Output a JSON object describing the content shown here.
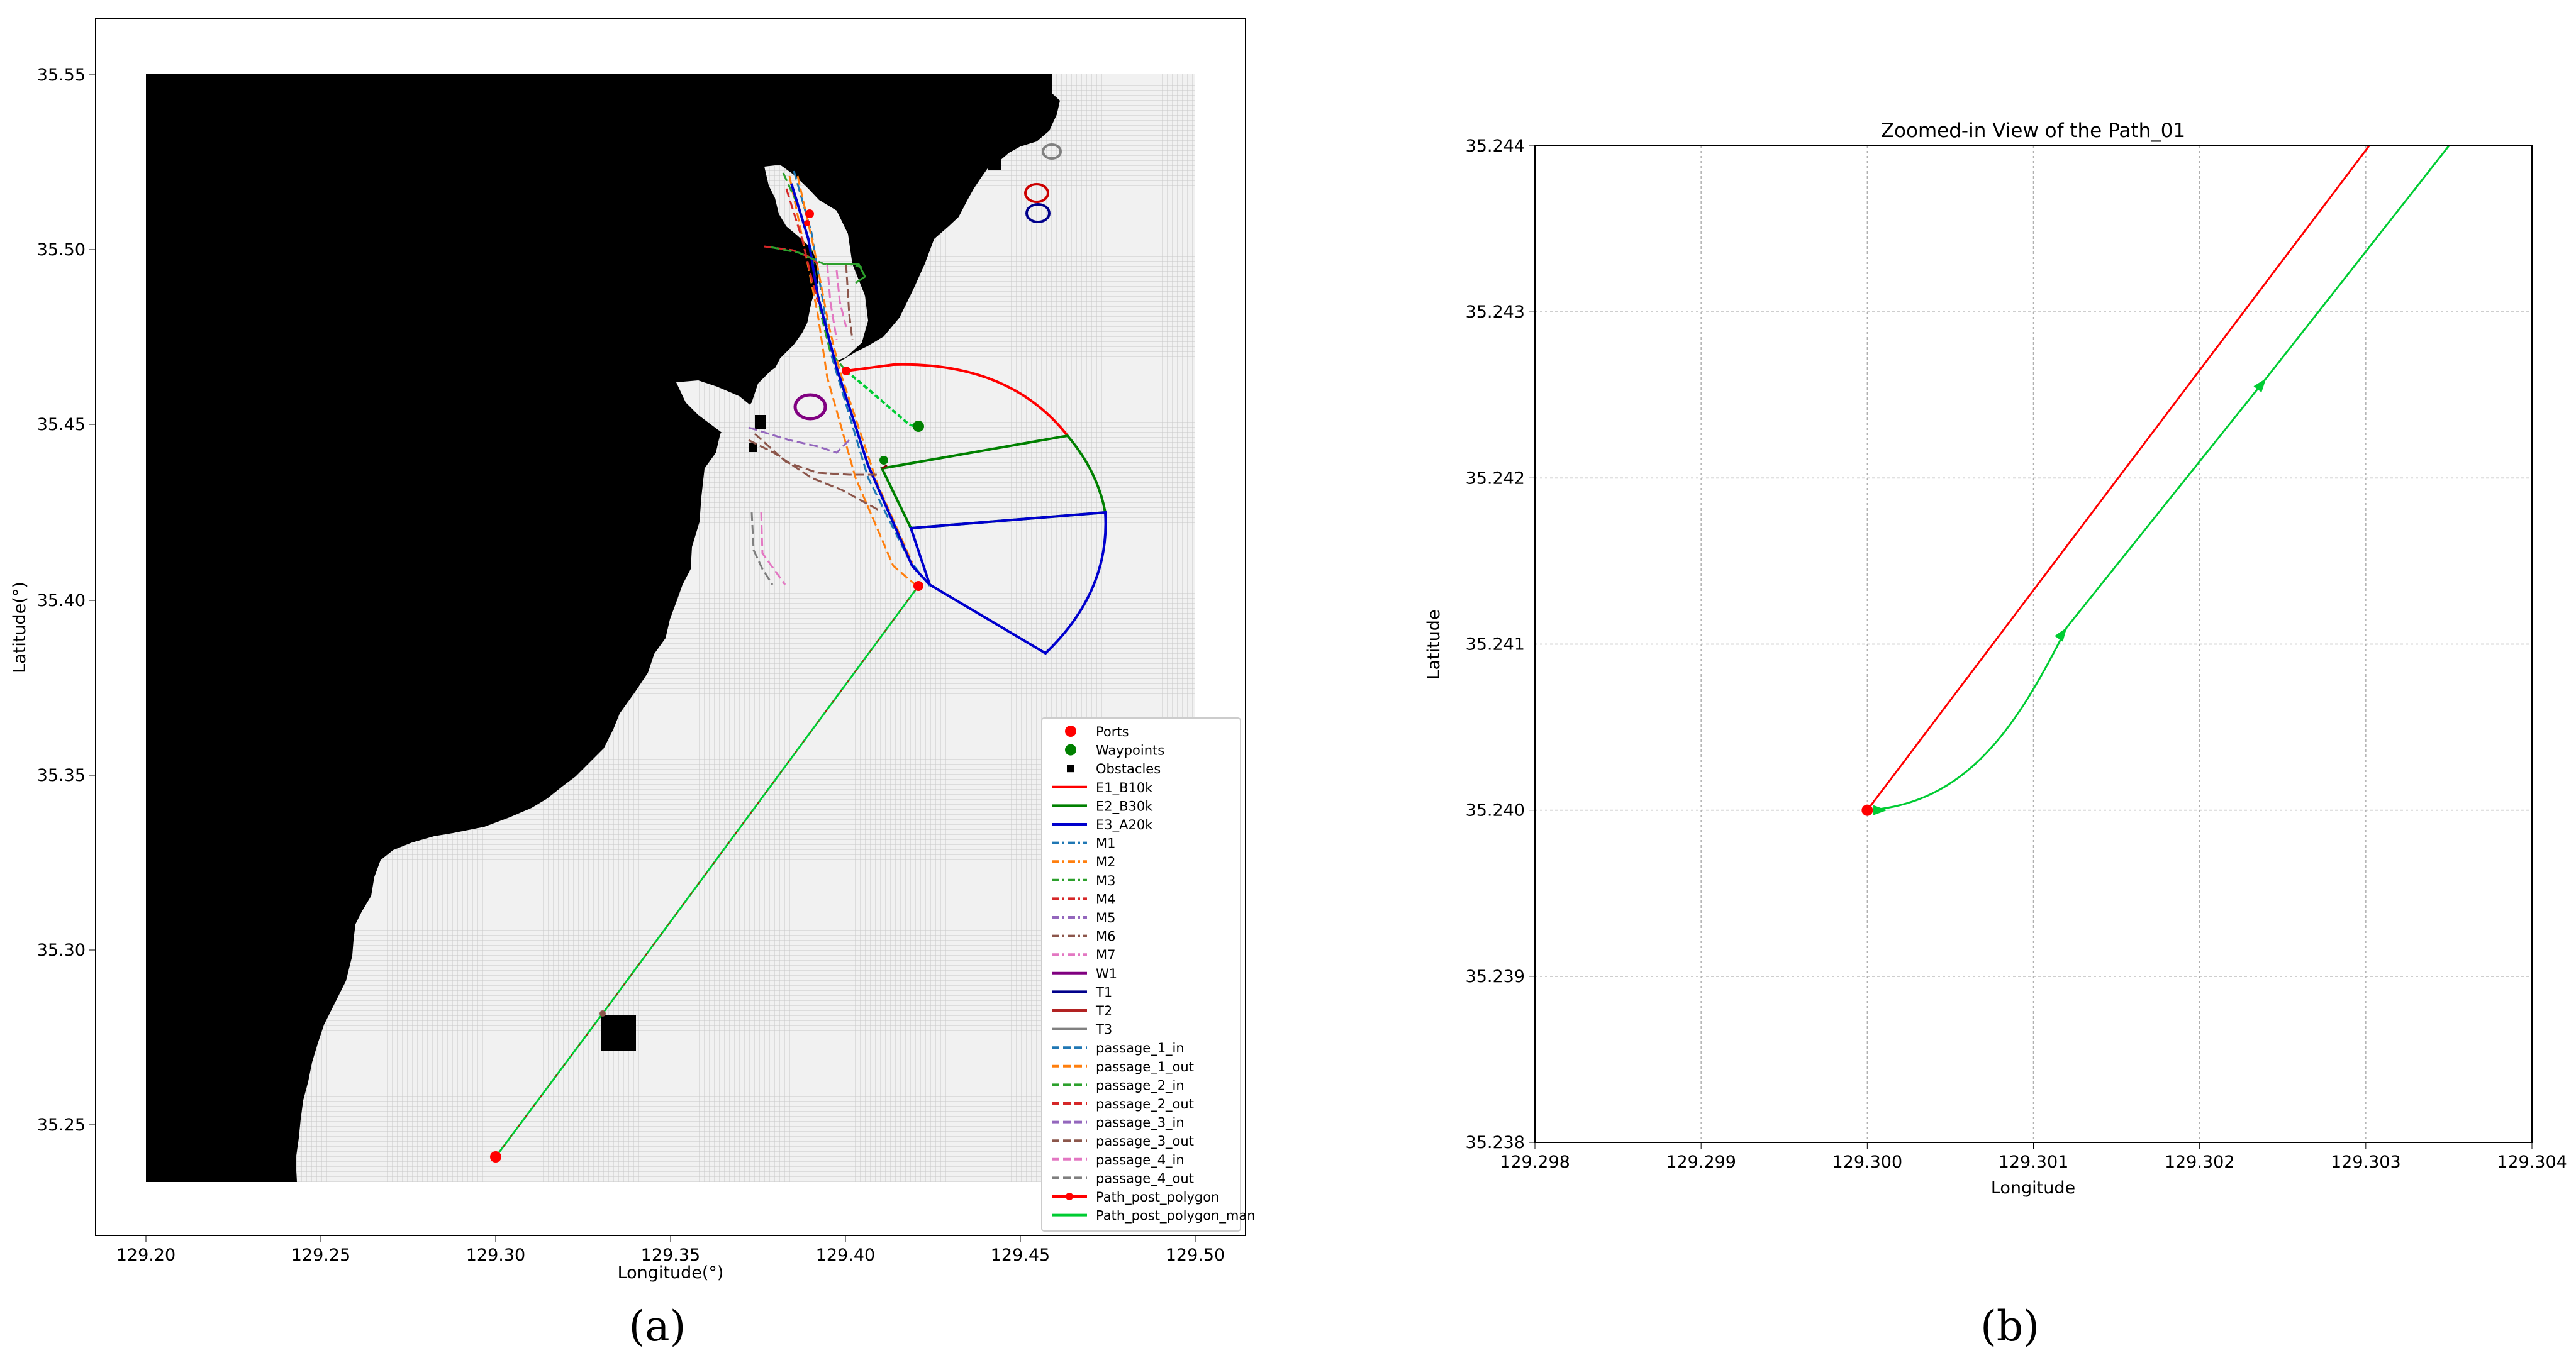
{
  "panel_a": {
    "caption": "(a)",
    "xlabel": "Longitude(°)",
    "ylabel": "Latitude(°)",
    "xticks": [
      "129.20",
      "129.25",
      "129.30",
      "129.35",
      "129.40",
      "129.45",
      "129.50"
    ],
    "yticks": [
      "35.25",
      "35.30",
      "35.35",
      "35.40",
      "35.45",
      "35.50",
      "35.55"
    ],
    "legend": [
      {
        "label": "Ports",
        "color": "#ff0000",
        "kind": "dot"
      },
      {
        "label": "Waypoints",
        "color": "#008000",
        "kind": "dot"
      },
      {
        "label": "Obstacles",
        "color": "#000000",
        "kind": "square"
      },
      {
        "label": "E1_B10k",
        "color": "#ff0000",
        "kind": "line"
      },
      {
        "label": "E2_B30k",
        "color": "#008000",
        "kind": "line"
      },
      {
        "label": "E3_A20k",
        "color": "#0000cd",
        "kind": "line"
      },
      {
        "label": "M1",
        "color": "#1f77b4",
        "kind": "dashdot"
      },
      {
        "label": "M2",
        "color": "#ff7f0e",
        "kind": "dashdot"
      },
      {
        "label": "M3",
        "color": "#2ca02c",
        "kind": "dashdot"
      },
      {
        "label": "M4",
        "color": "#d62728",
        "kind": "dashdot"
      },
      {
        "label": "M5",
        "color": "#9467bd",
        "kind": "dashdot"
      },
      {
        "label": "M6",
        "color": "#8c564b",
        "kind": "dashdot"
      },
      {
        "label": "M7",
        "color": "#e377c2",
        "kind": "dashdot"
      },
      {
        "label": "W1",
        "color": "#800080",
        "kind": "line"
      },
      {
        "label": "T1",
        "color": "#00008b",
        "kind": "line"
      },
      {
        "label": "T2",
        "color": "#b22222",
        "kind": "line"
      },
      {
        "label": "T3",
        "color": "#808080",
        "kind": "line"
      },
      {
        "label": "passage_1_in",
        "color": "#1f77b4",
        "kind": "dashed"
      },
      {
        "label": "passage_1_out",
        "color": "#ff7f0e",
        "kind": "dashed"
      },
      {
        "label": "passage_2_in",
        "color": "#2ca02c",
        "kind": "dashed"
      },
      {
        "label": "passage_2_out",
        "color": "#d62728",
        "kind": "dashed"
      },
      {
        "label": "passage_3_in",
        "color": "#9467bd",
        "kind": "dashed"
      },
      {
        "label": "passage_3_out",
        "color": "#8c564b",
        "kind": "dashed"
      },
      {
        "label": "passage_4_in",
        "color": "#e377c2",
        "kind": "dashed"
      },
      {
        "label": "passage_4_out",
        "color": "#7f7f7f",
        "kind": "dashed"
      },
      {
        "label": "Path_post_polygon",
        "color": "#ff0000",
        "kind": "linedot"
      },
      {
        "label": "Path_post_polygon_man",
        "color": "#00cc33",
        "kind": "line"
      }
    ]
  },
  "panel_b": {
    "caption": "(b)",
    "title": "Zoomed-in View of the Path_01",
    "xlabel": "Longitude",
    "ylabel": "Latitude",
    "xticks": [
      "129.298",
      "129.299",
      "129.300",
      "129.301",
      "129.302",
      "129.303",
      "129.304"
    ],
    "yticks": [
      "35.238",
      "35.239",
      "35.240",
      "35.241",
      "35.242",
      "35.243",
      "35.244"
    ]
  },
  "chart_data": [
    {
      "type": "map",
      "xlim": [
        129.186,
        129.508
      ],
      "ylim": [
        35.23,
        35.566
      ],
      "ports": [
        {
          "lon": 129.3,
          "lat": 35.24
        },
        {
          "lon": 129.42,
          "lat": 35.403
        },
        {
          "lon": 129.404,
          "lat": 35.466
        }
      ],
      "waypoints": [
        {
          "lon": 129.422,
          "lat": 35.449
        },
        {
          "lon": 129.41,
          "lat": 35.438
        }
      ],
      "path_post_polygon": [
        {
          "lon": 129.3,
          "lat": 35.24
        },
        {
          "lon": 129.331,
          "lat": 35.281
        },
        {
          "lon": 129.42,
          "lat": 35.403
        }
      ],
      "path_post_polygon_man": [
        {
          "lon": 129.3,
          "lat": 35.24
        },
        {
          "lon": 129.331,
          "lat": 35.281
        },
        {
          "lon": 129.42,
          "lat": 35.403
        }
      ]
    },
    {
      "type": "line",
      "title": "Zoomed-in View of the Path_01",
      "xlabel": "Longitude",
      "ylabel": "Latitude",
      "xlim": [
        129.298,
        129.304
      ],
      "ylim": [
        35.238,
        35.244
      ],
      "grid": true,
      "series": [
        {
          "color": "#ff0000",
          "points": [
            [
              129.3,
              35.24
            ],
            [
              129.30302,
              35.244
            ]
          ]
        },
        {
          "color": "#00cc33",
          "points": [
            [
              129.3,
              35.24
            ],
            [
              129.3006,
              35.24004
            ],
            [
              129.3009,
              35.2405
            ],
            [
              129.3012,
              35.2411
            ],
            [
              129.3024,
              35.2426
            ],
            [
              129.3035,
              35.244
            ]
          ]
        }
      ],
      "marker": {
        "lon": 129.3,
        "lat": 35.24,
        "color": "#ff0000"
      }
    }
  ]
}
